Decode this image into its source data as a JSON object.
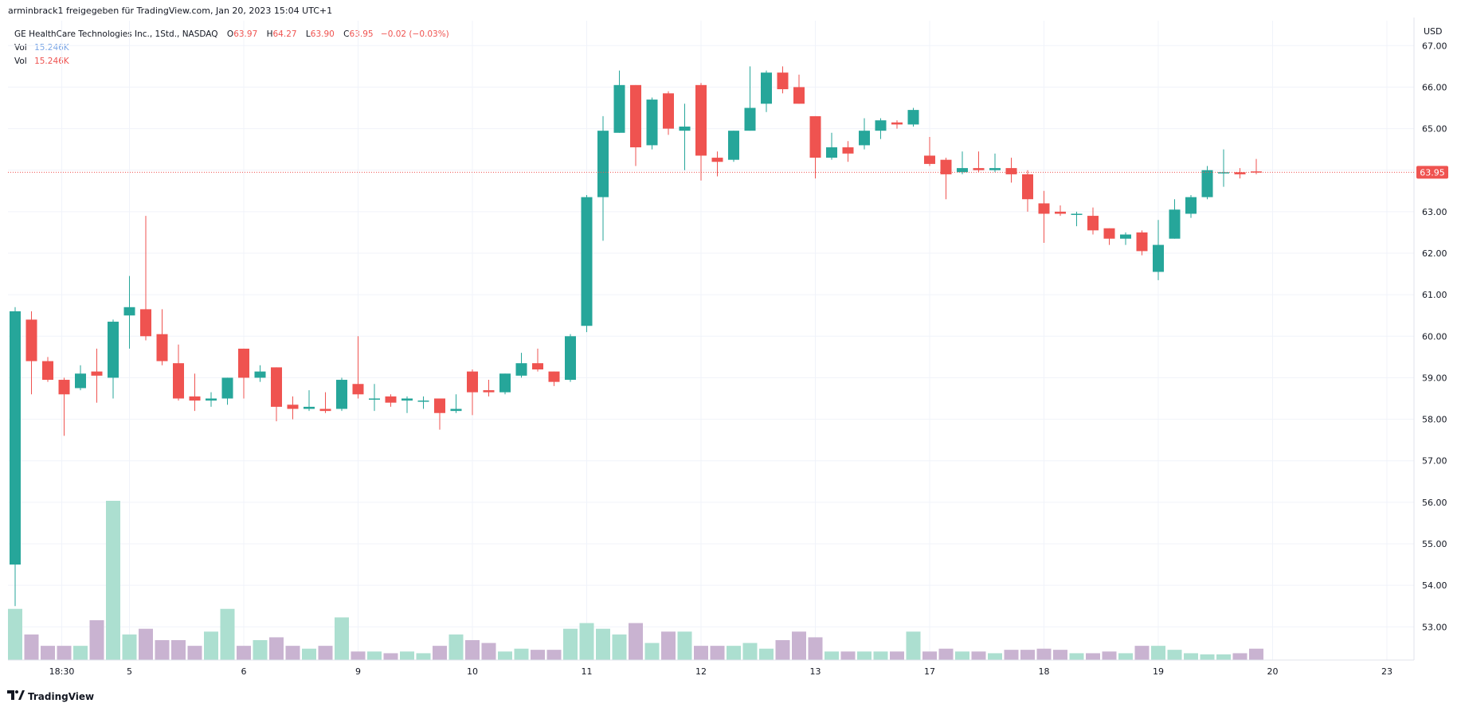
{
  "header": {
    "publisher_line": "arminbrack1 freigegeben für TradingView.com, Jan 20, 2023 15:04 UTC+1"
  },
  "legend": {
    "symbol": "GE HealthCare Technologies Inc., 1Std., NASDAQ",
    "o_label": "O",
    "o_value": "63.97",
    "h_label": "H",
    "h_value": "64.27",
    "l_label": "L",
    "l_value": "63.90",
    "c_label": "C",
    "c_value": "63.95",
    "change": "−0.02 (−0.03%)",
    "vol1_label": "Vol",
    "vol1_value": "15.246K",
    "vol2_label": "Vol",
    "vol2_value": "15.246K"
  },
  "axis": {
    "currency": "USD",
    "last_price_label": "63.95"
  },
  "footer": {
    "brand": "TradingView"
  },
  "colors": {
    "up": "#26a69a",
    "down": "#ef5350",
    "vol_up": "#acdfd0",
    "vol_down": "#c9b3d1",
    "grid": "#f0f3fa",
    "axis_text": "#131722",
    "price_line": "#ef5350"
  },
  "chart_data": {
    "type": "candlestick",
    "ylim": [
      52.2,
      67.6
    ],
    "y_ticks": [
      "53.00",
      "54.00",
      "55.00",
      "56.00",
      "57.00",
      "58.00",
      "59.00",
      "60.00",
      "61.00",
      "62.00",
      "63.00",
      "64.00",
      "65.00",
      "66.00",
      "67.00"
    ],
    "x_ticks": [
      {
        "label": "18:30",
        "bar": 3
      },
      {
        "label": "5",
        "bar": 7
      },
      {
        "label": "6",
        "bar": 14
      },
      {
        "label": "9",
        "bar": 21
      },
      {
        "label": "10",
        "bar": 28
      },
      {
        "label": "11",
        "bar": 35
      },
      {
        "label": "12",
        "bar": 42
      },
      {
        "label": "13",
        "bar": 49
      },
      {
        "label": "17",
        "bar": 56
      },
      {
        "label": "18",
        "bar": 63
      },
      {
        "label": "19",
        "bar": 70
      },
      {
        "label": "20",
        "bar": 77
      },
      {
        "label": "23",
        "bar": 84
      }
    ],
    "last_price": 63.95,
    "candles": [
      {
        "o": 54.5,
        "h": 60.7,
        "l": 53.5,
        "c": 60.6,
        "v": 9
      },
      {
        "o": 60.4,
        "h": 60.6,
        "l": 58.6,
        "c": 59.4,
        "v": 4.5
      },
      {
        "o": 59.4,
        "h": 59.5,
        "l": 58.9,
        "c": 58.95,
        "v": 2.5
      },
      {
        "o": 58.95,
        "h": 59.0,
        "l": 57.6,
        "c": 58.6,
        "v": 2.5
      },
      {
        "o": 58.75,
        "h": 59.3,
        "l": 58.7,
        "c": 59.1,
        "v": 2.5
      },
      {
        "o": 59.15,
        "h": 59.7,
        "l": 58.4,
        "c": 59.05,
        "v": 7
      },
      {
        "o": 59.0,
        "h": 60.4,
        "l": 58.5,
        "c": 60.35,
        "v": 28
      },
      {
        "o": 60.5,
        "h": 61.45,
        "l": 59.7,
        "c": 60.7,
        "v": 4.5
      },
      {
        "o": 60.65,
        "h": 62.9,
        "l": 59.9,
        "c": 60.0,
        "v": 5.5
      },
      {
        "o": 60.05,
        "h": 60.65,
        "l": 59.3,
        "c": 59.4,
        "v": 3.5
      },
      {
        "o": 59.35,
        "h": 59.8,
        "l": 58.45,
        "c": 58.5,
        "v": 3.5
      },
      {
        "o": 58.55,
        "h": 59.1,
        "l": 58.2,
        "c": 58.45,
        "v": 2.5
      },
      {
        "o": 58.45,
        "h": 58.65,
        "l": 58.3,
        "c": 58.5,
        "v": 5
      },
      {
        "o": 58.5,
        "h": 59.0,
        "l": 58.35,
        "c": 59.0,
        "v": 9
      },
      {
        "o": 59.7,
        "h": 59.7,
        "l": 58.5,
        "c": 59.0,
        "v": 2.5
      },
      {
        "o": 59.0,
        "h": 59.3,
        "l": 58.9,
        "c": 59.15,
        "v": 3.5
      },
      {
        "o": 59.25,
        "h": 59.25,
        "l": 57.95,
        "c": 58.3,
        "v": 4
      },
      {
        "o": 58.35,
        "h": 58.55,
        "l": 58.0,
        "c": 58.25,
        "v": 2.5
      },
      {
        "o": 58.25,
        "h": 58.7,
        "l": 58.2,
        "c": 58.3,
        "v": 2
      },
      {
        "o": 58.25,
        "h": 58.65,
        "l": 58.15,
        "c": 58.2,
        "v": 2.5
      },
      {
        "o": 58.25,
        "h": 59.0,
        "l": 58.2,
        "c": 58.95,
        "v": 7.5
      },
      {
        "o": 58.85,
        "h": 60.0,
        "l": 58.5,
        "c": 58.6,
        "v": 1.5
      },
      {
        "o": 58.5,
        "h": 58.85,
        "l": 58.2,
        "c": 58.5,
        "v": 1.5
      },
      {
        "o": 58.55,
        "h": 58.6,
        "l": 58.3,
        "c": 58.4,
        "v": 1.2
      },
      {
        "o": 58.45,
        "h": 58.55,
        "l": 58.15,
        "c": 58.5,
        "v": 1.5
      },
      {
        "o": 58.45,
        "h": 58.55,
        "l": 58.25,
        "c": 58.45,
        "v": 1.2
      },
      {
        "o": 58.5,
        "h": 58.5,
        "l": 57.75,
        "c": 58.15,
        "v": 2.5
      },
      {
        "o": 58.2,
        "h": 58.6,
        "l": 58.15,
        "c": 58.25,
        "v": 4.5
      },
      {
        "o": 59.15,
        "h": 59.2,
        "l": 58.1,
        "c": 58.65,
        "v": 3.5
      },
      {
        "o": 58.7,
        "h": 58.95,
        "l": 58.55,
        "c": 58.65,
        "v": 3
      },
      {
        "o": 58.65,
        "h": 59.1,
        "l": 58.6,
        "c": 59.1,
        "v": 1.5
      },
      {
        "o": 59.05,
        "h": 59.6,
        "l": 59.0,
        "c": 59.35,
        "v": 2
      },
      {
        "o": 59.35,
        "h": 59.7,
        "l": 59.15,
        "c": 59.2,
        "v": 1.8
      },
      {
        "o": 59.15,
        "h": 59.15,
        "l": 58.8,
        "c": 58.9,
        "v": 1.8
      },
      {
        "o": 58.95,
        "h": 60.05,
        "l": 58.9,
        "c": 60.0,
        "v": 5.5
      },
      {
        "o": 60.25,
        "h": 63.4,
        "l": 60.1,
        "c": 63.35,
        "v": 6.5
      },
      {
        "o": 63.35,
        "h": 65.3,
        "l": 62.3,
        "c": 64.95,
        "v": 5.5
      },
      {
        "o": 64.9,
        "h": 66.4,
        "l": 64.9,
        "c": 66.05,
        "v": 4.5
      },
      {
        "o": 66.05,
        "h": 66.05,
        "l": 64.1,
        "c": 64.55,
        "v": 6.5
      },
      {
        "o": 64.6,
        "h": 65.75,
        "l": 64.5,
        "c": 65.7,
        "v": 3
      },
      {
        "o": 65.85,
        "h": 65.9,
        "l": 64.85,
        "c": 65.0,
        "v": 5
      },
      {
        "o": 64.95,
        "h": 65.6,
        "l": 64.0,
        "c": 65.05,
        "v": 5
      },
      {
        "o": 66.05,
        "h": 66.1,
        "l": 63.75,
        "c": 64.35,
        "v": 2.5
      },
      {
        "o": 64.3,
        "h": 64.45,
        "l": 63.85,
        "c": 64.2,
        "v": 2.5
      },
      {
        "o": 64.25,
        "h": 64.95,
        "l": 64.2,
        "c": 64.95,
        "v": 2.5
      },
      {
        "o": 64.95,
        "h": 66.5,
        "l": 64.95,
        "c": 65.5,
        "v": 3
      },
      {
        "o": 65.6,
        "h": 66.4,
        "l": 65.4,
        "c": 66.35,
        "v": 2
      },
      {
        "o": 66.35,
        "h": 66.5,
        "l": 65.85,
        "c": 65.95,
        "v": 3.5
      },
      {
        "o": 66.0,
        "h": 66.3,
        "l": 65.6,
        "c": 65.6,
        "v": 5
      },
      {
        "o": 65.3,
        "h": 65.3,
        "l": 63.8,
        "c": 64.3,
        "v": 4
      },
      {
        "o": 64.3,
        "h": 64.9,
        "l": 64.25,
        "c": 64.55,
        "v": 1.5
      },
      {
        "o": 64.55,
        "h": 64.7,
        "l": 64.2,
        "c": 64.4,
        "v": 1.5
      },
      {
        "o": 64.6,
        "h": 65.25,
        "l": 64.5,
        "c": 64.95,
        "v": 1.5
      },
      {
        "o": 64.95,
        "h": 65.25,
        "l": 64.75,
        "c": 65.2,
        "v": 1.5
      },
      {
        "o": 65.15,
        "h": 65.2,
        "l": 65.0,
        "c": 65.1,
        "v": 1.5
      },
      {
        "o": 65.1,
        "h": 65.5,
        "l": 65.05,
        "c": 65.45,
        "v": 5
      },
      {
        "o": 64.35,
        "h": 64.8,
        "l": 64.1,
        "c": 64.15,
        "v": 1.5
      },
      {
        "o": 64.25,
        "h": 64.3,
        "l": 63.3,
        "c": 63.9,
        "v": 2
      },
      {
        "o": 63.95,
        "h": 64.45,
        "l": 63.9,
        "c": 64.05,
        "v": 1.5
      },
      {
        "o": 64.05,
        "h": 64.45,
        "l": 63.95,
        "c": 64.0,
        "v": 1.5
      },
      {
        "o": 64.0,
        "h": 64.4,
        "l": 63.95,
        "c": 64.05,
        "v": 1.2
      },
      {
        "o": 64.05,
        "h": 64.3,
        "l": 63.7,
        "c": 63.9,
        "v": 1.8
      },
      {
        "o": 63.9,
        "h": 64.0,
        "l": 63.0,
        "c": 63.3,
        "v": 1.8
      },
      {
        "o": 63.2,
        "h": 63.5,
        "l": 62.25,
        "c": 62.95,
        "v": 2
      },
      {
        "o": 63.0,
        "h": 63.15,
        "l": 62.9,
        "c": 62.95,
        "v": 1.8
      },
      {
        "o": 62.95,
        "h": 63.0,
        "l": 62.65,
        "c": 62.95,
        "v": 1.2
      },
      {
        "o": 62.9,
        "h": 63.1,
        "l": 62.45,
        "c": 62.55,
        "v": 1.2
      },
      {
        "o": 62.6,
        "h": 62.6,
        "l": 62.2,
        "c": 62.35,
        "v": 1.5
      },
      {
        "o": 62.35,
        "h": 62.5,
        "l": 62.2,
        "c": 62.45,
        "v": 1.2
      },
      {
        "o": 62.5,
        "h": 62.55,
        "l": 61.95,
        "c": 62.05,
        "v": 2.5
      },
      {
        "o": 61.55,
        "h": 62.8,
        "l": 61.35,
        "c": 62.2,
        "v": 2.5
      },
      {
        "o": 62.35,
        "h": 63.3,
        "l": 62.35,
        "c": 63.05,
        "v": 1.8
      },
      {
        "o": 62.95,
        "h": 63.4,
        "l": 62.85,
        "c": 63.35,
        "v": 1.2
      },
      {
        "o": 63.35,
        "h": 64.1,
        "l": 63.3,
        "c": 64.0,
        "v": 1.0
      },
      {
        "o": 63.95,
        "h": 64.5,
        "l": 63.6,
        "c": 63.95,
        "v": 1.0
      },
      {
        "o": 63.95,
        "h": 64.05,
        "l": 63.8,
        "c": 63.9,
        "v": 1.2
      },
      {
        "o": 63.97,
        "h": 64.27,
        "l": 63.9,
        "c": 63.95,
        "v": 2.0
      }
    ]
  }
}
